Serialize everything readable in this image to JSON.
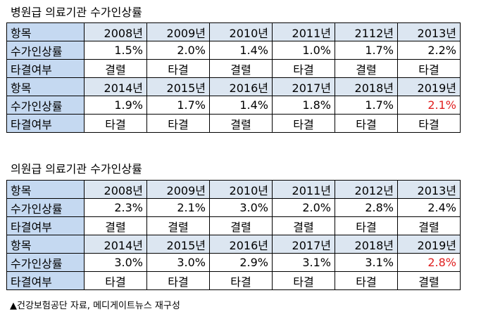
{
  "hospital": {
    "title": "병원급 의료기관 수가인상률",
    "blocks": [
      {
        "header": "항목",
        "years": [
          "2008년",
          "2009년",
          "2010년",
          "2011년",
          "2112년",
          "2013년"
        ],
        "rate_label": "수가인상률",
        "rates": [
          "1.5%",
          "2.0%",
          "1.4%",
          "1.0%",
          "1.7%",
          "2.2%"
        ],
        "result_label": "타결여부",
        "results": [
          "결렬",
          "타결",
          "결렬",
          "타결",
          "결렬",
          "타결"
        ]
      },
      {
        "header": "항목",
        "years": [
          "2014년",
          "2015년",
          "2016년",
          "2017년",
          "2018년",
          "2019년"
        ],
        "rate_label": "수가인상률",
        "rates": [
          "1.9%",
          "1.7%",
          "1.4%",
          "1.8%",
          "1.7%",
          "2.1%"
        ],
        "result_label": "타결여부",
        "results": [
          "타결",
          "타결",
          "결렬",
          "타결",
          "타결",
          "타결"
        ]
      }
    ]
  },
  "clinic": {
    "title": "의원급 의료기관 수가인상률",
    "blocks": [
      {
        "header": "항목",
        "years": [
          "2008년",
          "2009년",
          "2010년",
          "2011년",
          "2012년",
          "2013년"
        ],
        "rate_label": "수가인상률",
        "rates": [
          "2.3%",
          "2.1%",
          "3.0%",
          "2.0%",
          "2.8%",
          "2.4%"
        ],
        "result_label": "타결여부",
        "results": [
          "결렬",
          "결렬",
          "결렬",
          "결렬",
          "타결",
          "결렬"
        ]
      },
      {
        "header": "항목",
        "years": [
          "2014년",
          "2015년",
          "2016년",
          "2017년",
          "2018년",
          "2019년"
        ],
        "rate_label": "수가인상률",
        "rates": [
          "3.0%",
          "3.0%",
          "2.9%",
          "3.1%",
          "3.1%",
          "2.8%"
        ],
        "result_label": "타결여부",
        "results": [
          "타결",
          "타결",
          "타결",
          "타결",
          "타결",
          "결렬"
        ]
      }
    ]
  },
  "highlight_color": "#e02020",
  "footnote": "▲건강보험공단 자료, 메디게이트뉴스 재구성"
}
